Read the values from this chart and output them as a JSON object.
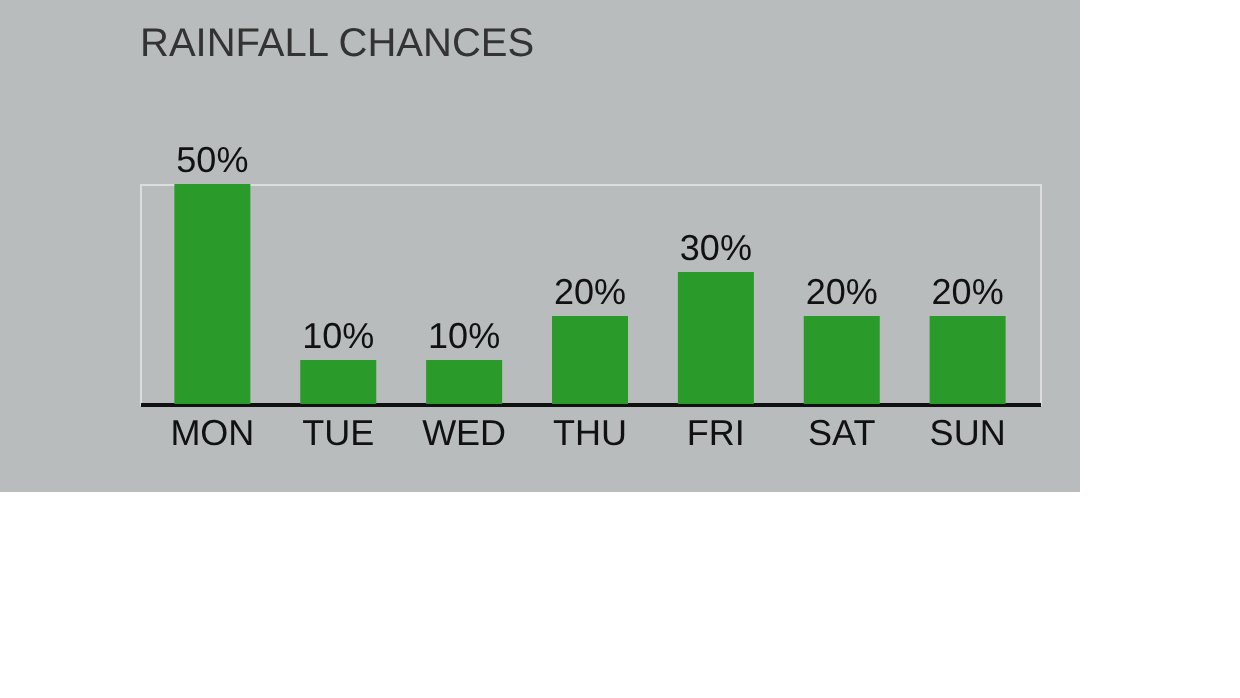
{
  "chart_data": {
    "type": "bar",
    "title": "RAINFALL CHANCES",
    "categories": [
      "MON",
      "TUE",
      "WED",
      "THU",
      "FRI",
      "SAT",
      "SUN"
    ],
    "values": [
      50,
      10,
      10,
      20,
      30,
      20,
      20
    ],
    "value_labels": [
      "50%",
      "10%",
      "10%",
      "20%",
      "30%",
      "20%",
      "20%"
    ],
    "color": "#2a9a2a"
  }
}
